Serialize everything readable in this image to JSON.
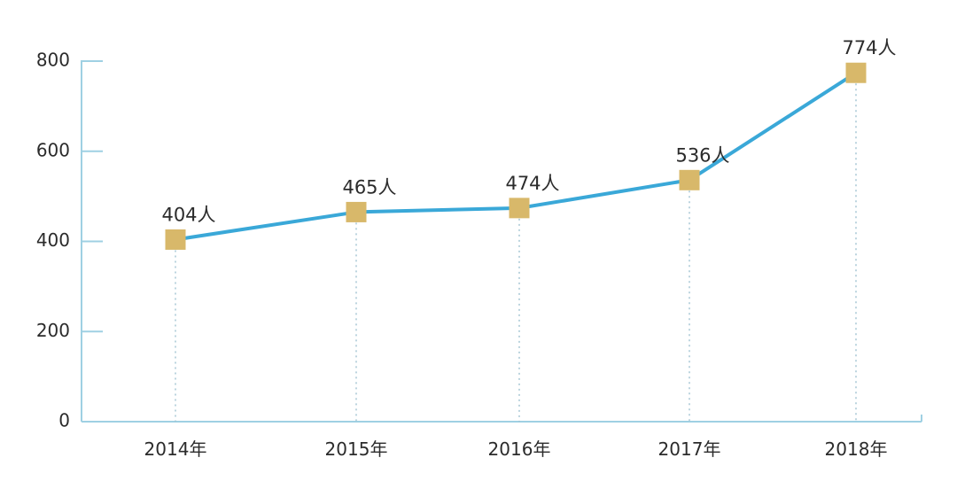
{
  "chart_data": {
    "type": "line",
    "categories": [
      "2014年",
      "2015年",
      "2016年",
      "2017年",
      "2018年"
    ],
    "series": [
      {
        "values": [
          404,
          465,
          474,
          536,
          774
        ],
        "labels": [
          "404人",
          "465人",
          "474人",
          "536人",
          "774人"
        ]
      }
    ],
    "y_ticks": [
      "0",
      "200",
      "400",
      "600",
      "800"
    ],
    "ylim": [
      0,
      800
    ],
    "grid": false,
    "legend": "none",
    "title": "",
    "xlabel": "",
    "ylabel": ""
  },
  "colors": {
    "line": "#3aa8d8",
    "marker": "#d8b86a",
    "axis": "#9fd0e3",
    "text": "#2b2b2b",
    "drop_line": "#9fc2d1"
  }
}
